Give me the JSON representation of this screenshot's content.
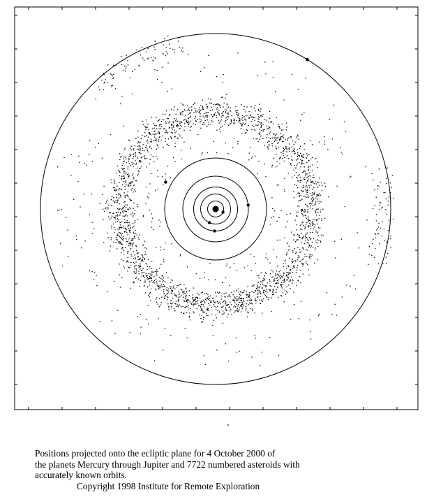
{
  "caption": {
    "lines": [
      "Positions projected onto the ecliptic plane for 4 October 2000 of",
      "the planets Mercury through Jupiter and 7722 numbered asteroids with",
      "accurately known orbits."
    ],
    "copyright": "Copyright 1998 Institute for Remote Exploration"
  },
  "figure": {
    "background": "#ffffff",
    "ink": "#000000",
    "frame": true,
    "tick_marks": true,
    "asteroid_count": 7722,
    "planets": [
      {
        "name": "Mercury",
        "orbit_au": 0.39
      },
      {
        "name": "Venus",
        "orbit_au": 0.72
      },
      {
        "name": "Earth",
        "orbit_au": 1.0
      },
      {
        "name": "Mars",
        "orbit_au": 1.52
      },
      {
        "name": "Jupiter",
        "orbit_au": 5.2
      }
    ],
    "sun": true
  }
}
